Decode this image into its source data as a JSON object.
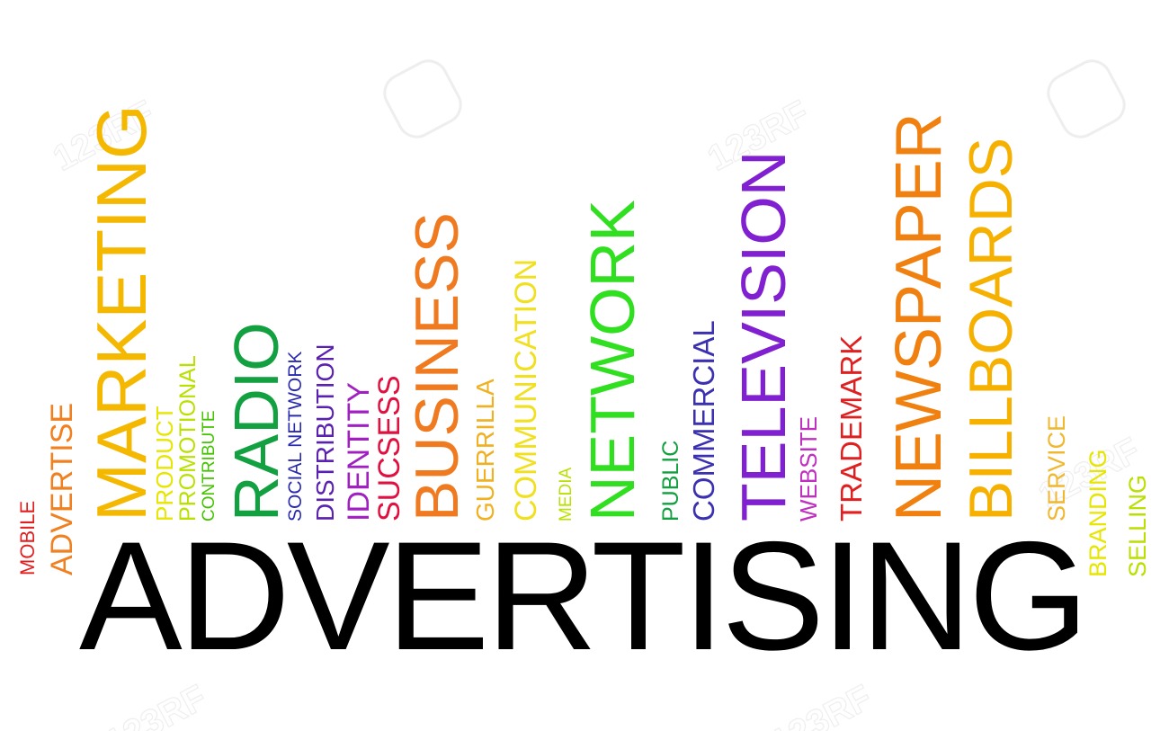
{
  "headline": "ADVERTISING",
  "words": [
    {
      "id": "mobile",
      "text": "MOBILE",
      "color": "#e02020"
    },
    {
      "id": "advertise",
      "text": "ADVERTISE",
      "color": "#f08020"
    },
    {
      "id": "marketing",
      "text": "MARKETING",
      "color": "#f5b800"
    },
    {
      "id": "product",
      "text": "PRODUCT",
      "color": "#e6e600"
    },
    {
      "id": "promotional",
      "text": "PROMOTIONAL",
      "color": "#b8e000"
    },
    {
      "id": "contribute",
      "text": "CONTRIBUTE",
      "color": "#44c400"
    },
    {
      "id": "radio",
      "text": "RADIO",
      "color": "#12a040"
    },
    {
      "id": "social-network",
      "text": "SOCIAL NETWORK",
      "color": "#2a2ab0"
    },
    {
      "id": "distribution",
      "text": "DISTRIBUTION",
      "color": "#5a20b0"
    },
    {
      "id": "identity",
      "text": "IDENTITY",
      "color": "#a020c0"
    },
    {
      "id": "sucsess",
      "text": "SUCSESS",
      "color": "#e01040"
    },
    {
      "id": "business",
      "text": "BUSINESS",
      "color": "#f07a20"
    },
    {
      "id": "guerrilla",
      "text": "GUERRILLA",
      "color": "#f0b020"
    },
    {
      "id": "communication",
      "text": "COMMUNICATION",
      "color": "#f0e020"
    },
    {
      "id": "media",
      "text": "MEDIA",
      "color": "#b8e000"
    },
    {
      "id": "network",
      "text": "NETWORK",
      "color": "#30e020"
    },
    {
      "id": "public",
      "text": "PUBLIC",
      "color": "#12a040"
    },
    {
      "id": "commercial",
      "text": "COMMERCIAL",
      "color": "#3a30b0"
    },
    {
      "id": "television",
      "text": "TELEVISION",
      "color": "#8020d0"
    },
    {
      "id": "website",
      "text": "WEBSITE",
      "color": "#c030c0"
    },
    {
      "id": "trademark",
      "text": "TRADEMARK",
      "color": "#e02020"
    },
    {
      "id": "newspaper",
      "text": "NEWSPAPER",
      "color": "#f08010"
    },
    {
      "id": "billboards",
      "text": "BILLBOARDS",
      "color": "#f5b000"
    },
    {
      "id": "service",
      "text": "SERVICE",
      "color": "#f0b830"
    },
    {
      "id": "branding",
      "text": "BRANDING",
      "color": "#e6e600"
    },
    {
      "id": "selling",
      "text": "SELLING",
      "color": "#b8e000"
    }
  ],
  "watermark": {
    "text": "123RF"
  }
}
